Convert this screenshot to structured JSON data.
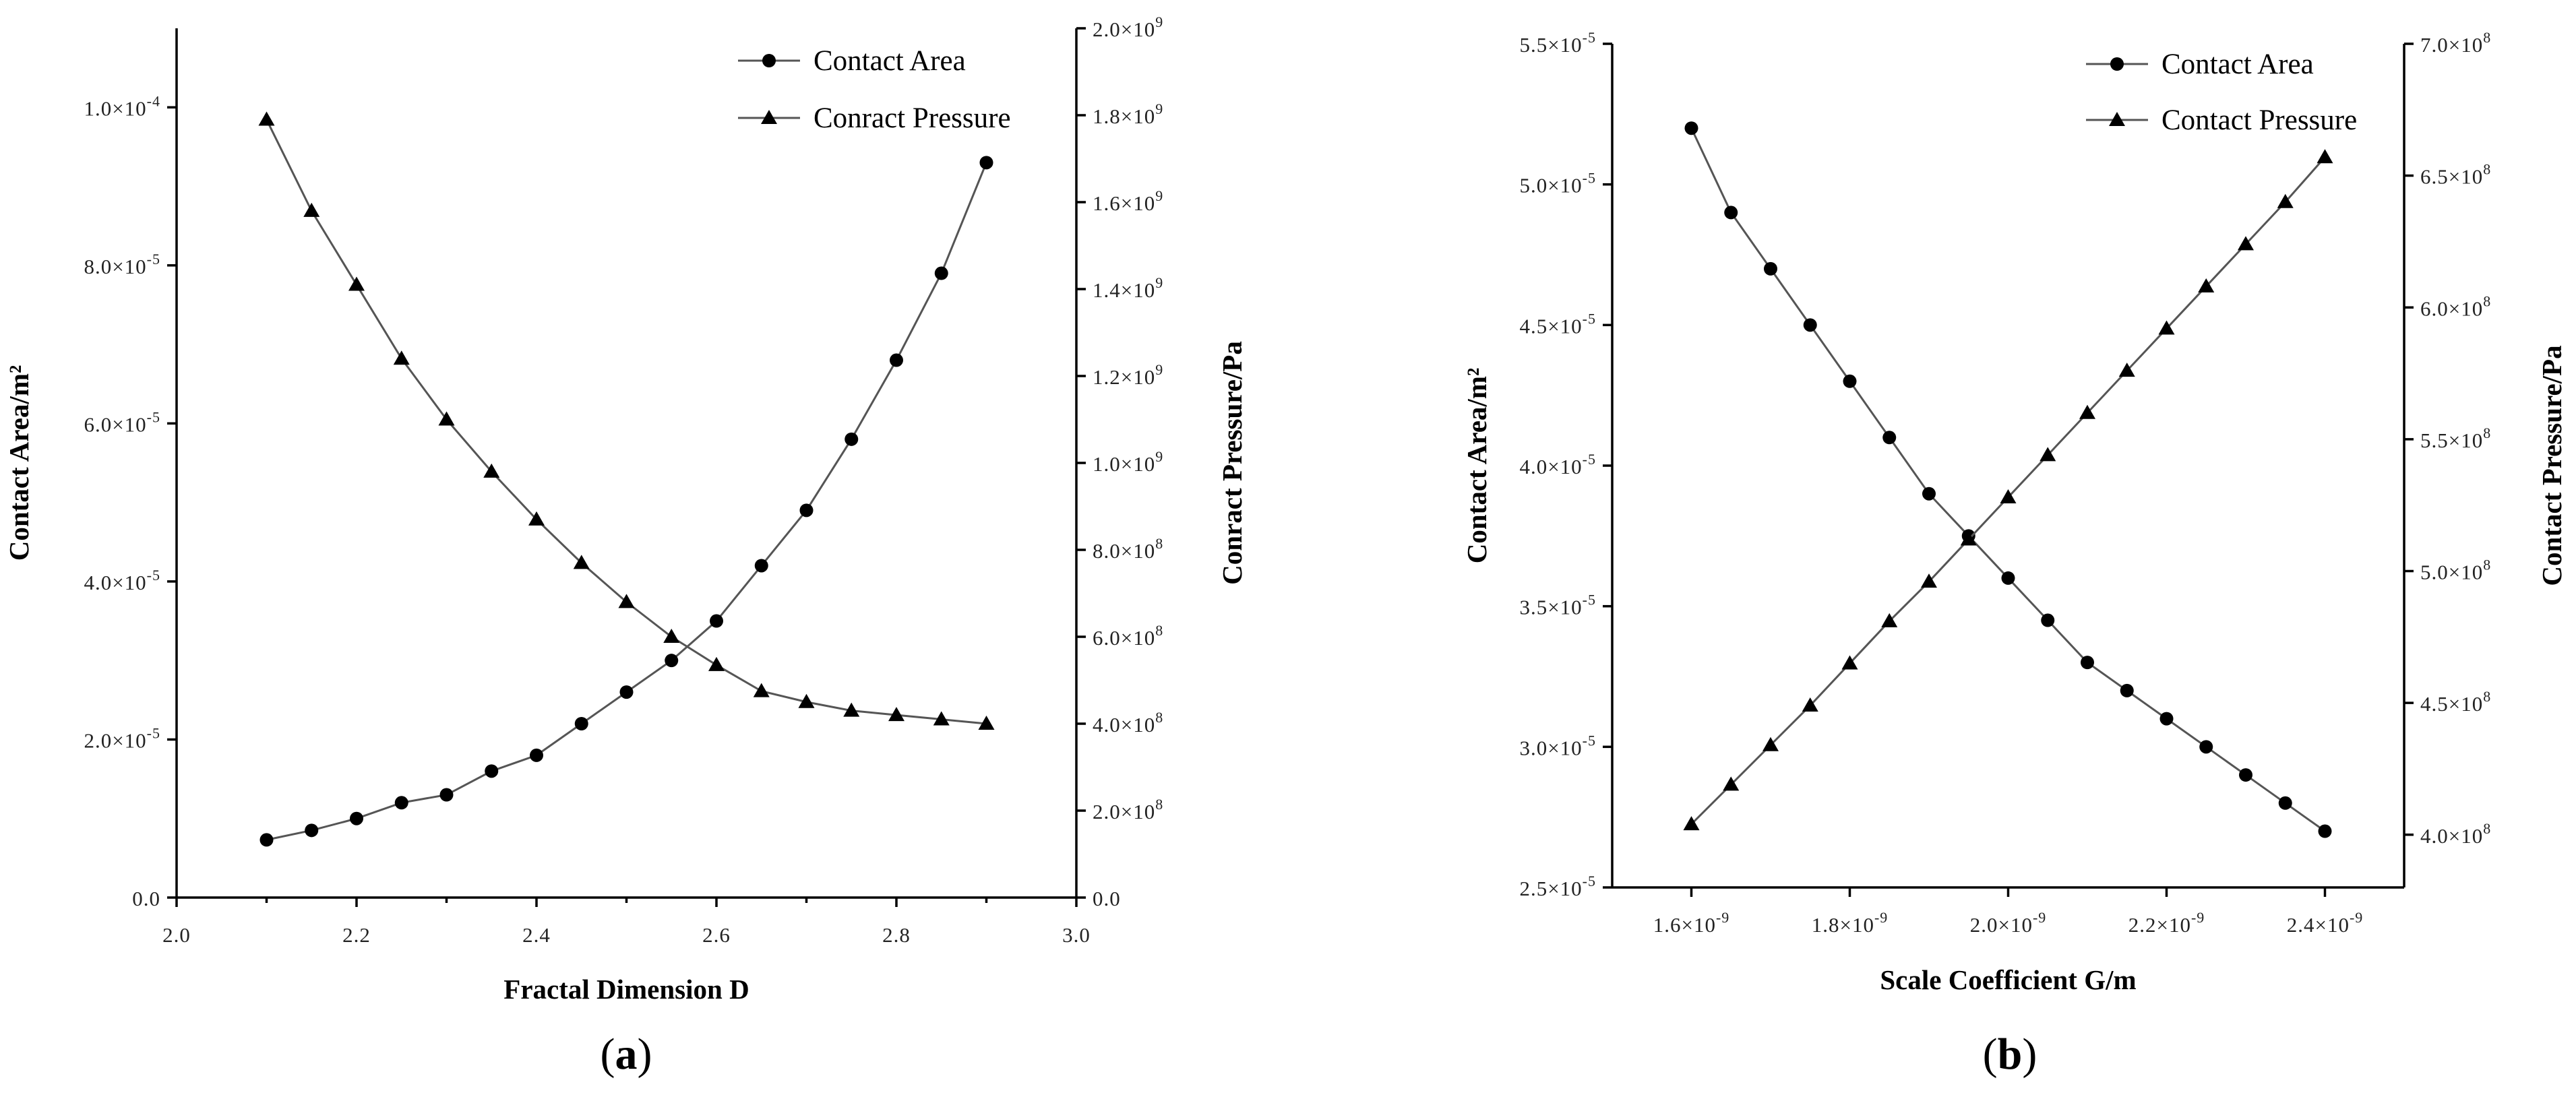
{
  "chart_data": [
    {
      "type": "line",
      "panel_label_prefix": "(",
      "panel_label": "a",
      "panel_label_suffix": ")",
      "xlabel": "Fractal Dimension D",
      "ylabel": "Contact Area/m²",
      "y2label": "Conract Pressure/Pa",
      "xlim": [
        2.0,
        3.0
      ],
      "ylim": [
        0,
        0.00011
      ],
      "y2lim": [
        0,
        2000000000
      ],
      "x_ticks": [
        "2.0",
        "2.2",
        "2.4",
        "2.6",
        "2.8",
        "3.0"
      ],
      "y_ticks": [
        {
          "value": 0,
          "mant": "0.0",
          "exp": ""
        },
        {
          "value": 2e-05,
          "mant": "2.0×10",
          "exp": "-5"
        },
        {
          "value": 4e-05,
          "mant": "4.0×10",
          "exp": "-5"
        },
        {
          "value": 6e-05,
          "mant": "6.0×10",
          "exp": "-5"
        },
        {
          "value": 8e-05,
          "mant": "8.0×10",
          "exp": "-5"
        },
        {
          "value": 0.0001,
          "mant": "1.0×10",
          "exp": "-4"
        }
      ],
      "y2_ticks": [
        {
          "value": 0,
          "mant": "0.0",
          "exp": ""
        },
        {
          "value": 200000000,
          "mant": "2.0×10",
          "exp": "8"
        },
        {
          "value": 400000000,
          "mant": "4.0×10",
          "exp": "8"
        },
        {
          "value": 600000000,
          "mant": "6.0×10",
          "exp": "8"
        },
        {
          "value": 800000000,
          "mant": "8.0×10",
          "exp": "8"
        },
        {
          "value": 1000000000,
          "mant": "1.0×10",
          "exp": "9"
        },
        {
          "value": 1200000000,
          "mant": "1.2×10",
          "exp": "9"
        },
        {
          "value": 1400000000,
          "mant": "1.4×10",
          "exp": "9"
        },
        {
          "value": 1600000000,
          "mant": "1.6×10",
          "exp": "9"
        },
        {
          "value": 1800000000,
          "mant": "1.8×10",
          "exp": "9"
        },
        {
          "value": 2000000000,
          "mant": "2.0×10",
          "exp": "9"
        }
      ],
      "legend_position": "top-right",
      "series": [
        {
          "name": "Contact Area",
          "axis": "left",
          "marker": "circle",
          "x": [
            2.1,
            2.15,
            2.2,
            2.25,
            2.3,
            2.35,
            2.4,
            2.45,
            2.5,
            2.55,
            2.6,
            2.65,
            2.7,
            2.75,
            2.8,
            2.85,
            2.9
          ],
          "values": [
            7.3e-06,
            8.5e-06,
            1e-05,
            1.2e-05,
            1.3e-05,
            1.6e-05,
            1.8e-05,
            2.2e-05,
            2.6e-05,
            3e-05,
            3.5e-05,
            4.2e-05,
            4.9e-05,
            5.8e-05,
            6.8e-05,
            7.9e-05,
            9.3e-05
          ]
        },
        {
          "name": "Conract Pressure",
          "axis": "right",
          "marker": "triangle",
          "x": [
            2.1,
            2.15,
            2.2,
            2.25,
            2.3,
            2.35,
            2.4,
            2.45,
            2.5,
            2.55,
            2.6,
            2.65,
            2.7,
            2.75,
            2.8,
            2.85,
            2.9
          ],
          "values": [
            1790000000.0,
            1580000000.0,
            1410000000.0,
            1240000000.0,
            1100000000.0,
            980000000.0,
            870000000.0,
            770000000.0,
            680000000.0,
            600000000.0,
            535000000.0,
            475000000.0,
            450000000.0,
            430000000.0,
            420000000.0,
            410000000.0,
            400000000.0
          ]
        }
      ]
    },
    {
      "type": "line",
      "panel_label_prefix": "(",
      "panel_label": "b",
      "panel_label_suffix": ")",
      "xlabel": "Scale Coefficient G/m",
      "ylabel": "Contact Area/m²",
      "y2label": "Contact Pressure/Pa",
      "xlim": [
        1.5e-09,
        2.5e-09
      ],
      "ylim": [
        2.5e-05,
        5.5e-05
      ],
      "y2lim": [
        380000000,
        700000000
      ],
      "x_ticks": [
        {
          "value": 1.6e-09,
          "mant": "1.6×10",
          "exp": "-9"
        },
        {
          "value": 1.8e-09,
          "mant": "1.8×10",
          "exp": "-9"
        },
        {
          "value": 2e-09,
          "mant": "2.0×10",
          "exp": "-9"
        },
        {
          "value": 2.2e-09,
          "mant": "2.2×10",
          "exp": "-9"
        },
        {
          "value": 2.4e-09,
          "mant": "2.4×10",
          "exp": "-9"
        }
      ],
      "y_ticks": [
        {
          "value": 2.5e-05,
          "mant": "2.5×10",
          "exp": "-5"
        },
        {
          "value": 3e-05,
          "mant": "3.0×10",
          "exp": "-5"
        },
        {
          "value": 3.5e-05,
          "mant": "3.5×10",
          "exp": "-5"
        },
        {
          "value": 4e-05,
          "mant": "4.0×10",
          "exp": "-5"
        },
        {
          "value": 4.5e-05,
          "mant": "4.5×10",
          "exp": "-5"
        },
        {
          "value": 5e-05,
          "mant": "5.0×10",
          "exp": "-5"
        },
        {
          "value": 5.5e-05,
          "mant": "5.5×10",
          "exp": "-5"
        }
      ],
      "y2_ticks": [
        {
          "value": 400000000,
          "mant": "4.0×10",
          "exp": "8"
        },
        {
          "value": 450000000,
          "mant": "4.5×10",
          "exp": "8"
        },
        {
          "value": 500000000,
          "mant": "5.0×10",
          "exp": "8"
        },
        {
          "value": 550000000,
          "mant": "5.5×10",
          "exp": "8"
        },
        {
          "value": 600000000,
          "mant": "6.0×10",
          "exp": "8"
        },
        {
          "value": 650000000,
          "mant": "6.5×10",
          "exp": "8"
        },
        {
          "value": 700000000,
          "mant": "7.0×10",
          "exp": "8"
        }
      ],
      "legend_position": "top-right",
      "series": [
        {
          "name": "Contact Area",
          "axis": "left",
          "marker": "circle",
          "x": [
            1.6e-09,
            1.65e-09,
            1.7e-09,
            1.75e-09,
            1.8e-09,
            1.85e-09,
            1.9e-09,
            1.95e-09,
            2e-09,
            2.05e-09,
            2.1e-09,
            2.15e-09,
            2.2e-09,
            2.25e-09,
            2.3e-09,
            2.35e-09,
            2.4e-09
          ],
          "values": [
            5.2e-05,
            4.9e-05,
            4.7e-05,
            4.5e-05,
            4.3e-05,
            4.1e-05,
            3.9e-05,
            3.75e-05,
            3.6e-05,
            3.45e-05,
            3.3e-05,
            3.2e-05,
            3.1e-05,
            3e-05,
            2.9e-05,
            2.8e-05,
            2.7e-05
          ]
        },
        {
          "name": "Contact Pressure",
          "axis": "right",
          "marker": "triangle",
          "x": [
            1.6e-09,
            1.65e-09,
            1.7e-09,
            1.75e-09,
            1.8e-09,
            1.85e-09,
            1.9e-09,
            1.95e-09,
            2e-09,
            2.05e-09,
            2.1e-09,
            2.15e-09,
            2.2e-09,
            2.25e-09,
            2.3e-09,
            2.35e-09,
            2.4e-09
          ],
          "values": [
            404000000.0,
            419000000.0,
            434000000.0,
            449000000.0,
            465000000.0,
            481000000.0,
            496000000.0,
            512000000.0,
            528000000.0,
            544000000.0,
            560000000.0,
            576000000.0,
            592000000.0,
            608000000.0,
            624000000.0,
            640000000.0,
            657000000.0
          ]
        }
      ]
    }
  ]
}
